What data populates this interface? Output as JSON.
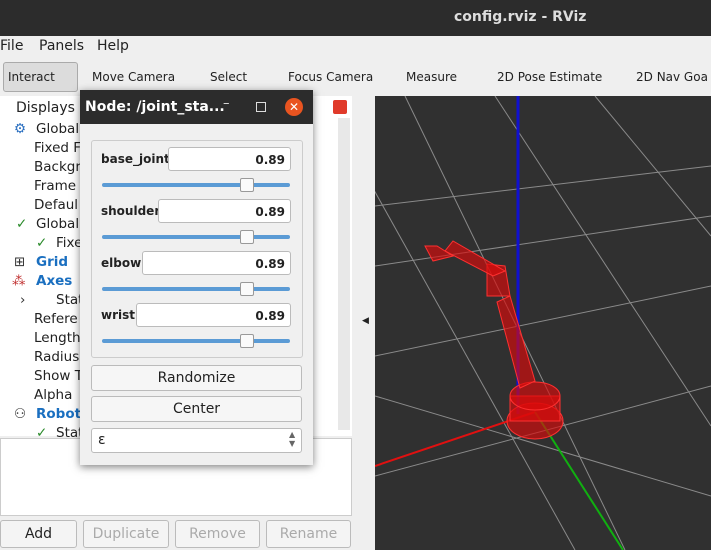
{
  "window": {
    "title": "config.rviz - RViz"
  },
  "menu": [
    "File",
    "Panels",
    "Help"
  ],
  "toolbar": [
    "Interact",
    "Move Camera",
    "Select",
    "Focus Camera",
    "Measure",
    "2D Pose Estimate",
    "2D Nav Goa"
  ],
  "displays": {
    "title": "Displays",
    "items": [
      "Global",
      "Fixed F",
      "Backgr",
      "Frame",
      "Defaul",
      "Global",
      "Fixe",
      "Grid",
      "Axes",
      "Stat",
      "Refere",
      "Length",
      "Radius",
      "Show T",
      "Alpha",
      "Robot",
      "Stat"
    ],
    "buttons": [
      "Add",
      "Duplicate",
      "Remove",
      "Rename"
    ]
  },
  "dialog": {
    "title": "Node: /joint_sta...",
    "joints": [
      {
        "name": "base_joint",
        "value": "0.89"
      },
      {
        "name": "shoulder",
        "value": "0.89"
      },
      {
        "name": "elbow",
        "value": "0.89"
      },
      {
        "name": "wrist",
        "value": "0.89"
      }
    ],
    "buttons": [
      "Randomize",
      "Center"
    ],
    "spin": "ε"
  }
}
